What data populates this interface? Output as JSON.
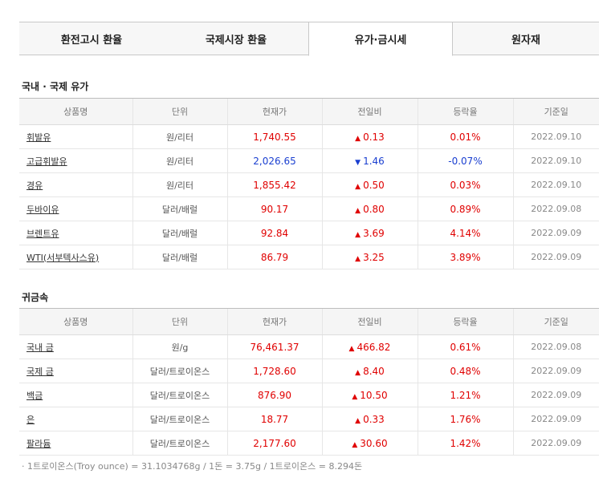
{
  "tabs": [
    {
      "label": "환전고시 환율"
    },
    {
      "label": "국제시장 환율"
    },
    {
      "label": "유가·금시세"
    },
    {
      "label": "원자재"
    }
  ],
  "headers": [
    "상품명",
    "단위",
    "현재가",
    "전일비",
    "등락율",
    "기준일"
  ],
  "oil": {
    "title": "국내 · 국제 유가",
    "rows": [
      {
        "name": "휘발유",
        "unit": "원/리터",
        "price": "1,740.55",
        "change": "0.13",
        "dir": "up",
        "rate": "0.01%",
        "date": "2022.09.10"
      },
      {
        "name": "고급휘발유",
        "unit": "원/리터",
        "price": "2,026.65",
        "change": "1.46",
        "dir": "down",
        "rate": "-0.07%",
        "date": "2022.09.10"
      },
      {
        "name": "경유",
        "unit": "원/리터",
        "price": "1,855.42",
        "change": "0.50",
        "dir": "up",
        "rate": "0.03%",
        "date": "2022.09.10"
      },
      {
        "name": "두바이유",
        "unit": "달러/배럴",
        "price": "90.17",
        "change": "0.80",
        "dir": "up",
        "rate": "0.89%",
        "date": "2022.09.08"
      },
      {
        "name": "브렌트유",
        "unit": "달러/배럴",
        "price": "92.84",
        "change": "3.69",
        "dir": "up",
        "rate": "4.14%",
        "date": "2022.09.09"
      },
      {
        "name": "WTI(서부텍사스유)",
        "unit": "달러/배럴",
        "price": "86.79",
        "change": "3.25",
        "dir": "up",
        "rate": "3.89%",
        "date": "2022.09.09"
      }
    ]
  },
  "metal": {
    "title": "귀금속",
    "rows": [
      {
        "name": "국내 금",
        "unit": "원/g",
        "price": "76,461.37",
        "change": "466.82",
        "dir": "up",
        "rate": "0.61%",
        "date": "2022.09.08"
      },
      {
        "name": "국제 금",
        "unit": "달러/트로이온스",
        "price": "1,728.60",
        "change": "8.40",
        "dir": "up",
        "rate": "0.48%",
        "date": "2022.09.09"
      },
      {
        "name": "백금",
        "unit": "달러/트로이온스",
        "price": "876.90",
        "change": "10.50",
        "dir": "up",
        "rate": "1.21%",
        "date": "2022.09.09"
      },
      {
        "name": "은",
        "unit": "달러/트로이온스",
        "price": "18.77",
        "change": "0.33",
        "dir": "up",
        "rate": "1.76%",
        "date": "2022.09.09"
      },
      {
        "name": "팔라듐",
        "unit": "달러/트로이온스",
        "price": "2,177.60",
        "change": "30.60",
        "dir": "up",
        "rate": "1.42%",
        "date": "2022.09.09"
      }
    ]
  },
  "note": "1트로이온스(Troy ounce) = 31.1034768g / 1돈 = 3.75g / 1트로이온스 = 8.294돈",
  "colors": {
    "up": "#e00000",
    "down": "#1a3fd0"
  },
  "icons": {
    "up": "triangle-up-icon",
    "down": "triangle-down-icon"
  }
}
